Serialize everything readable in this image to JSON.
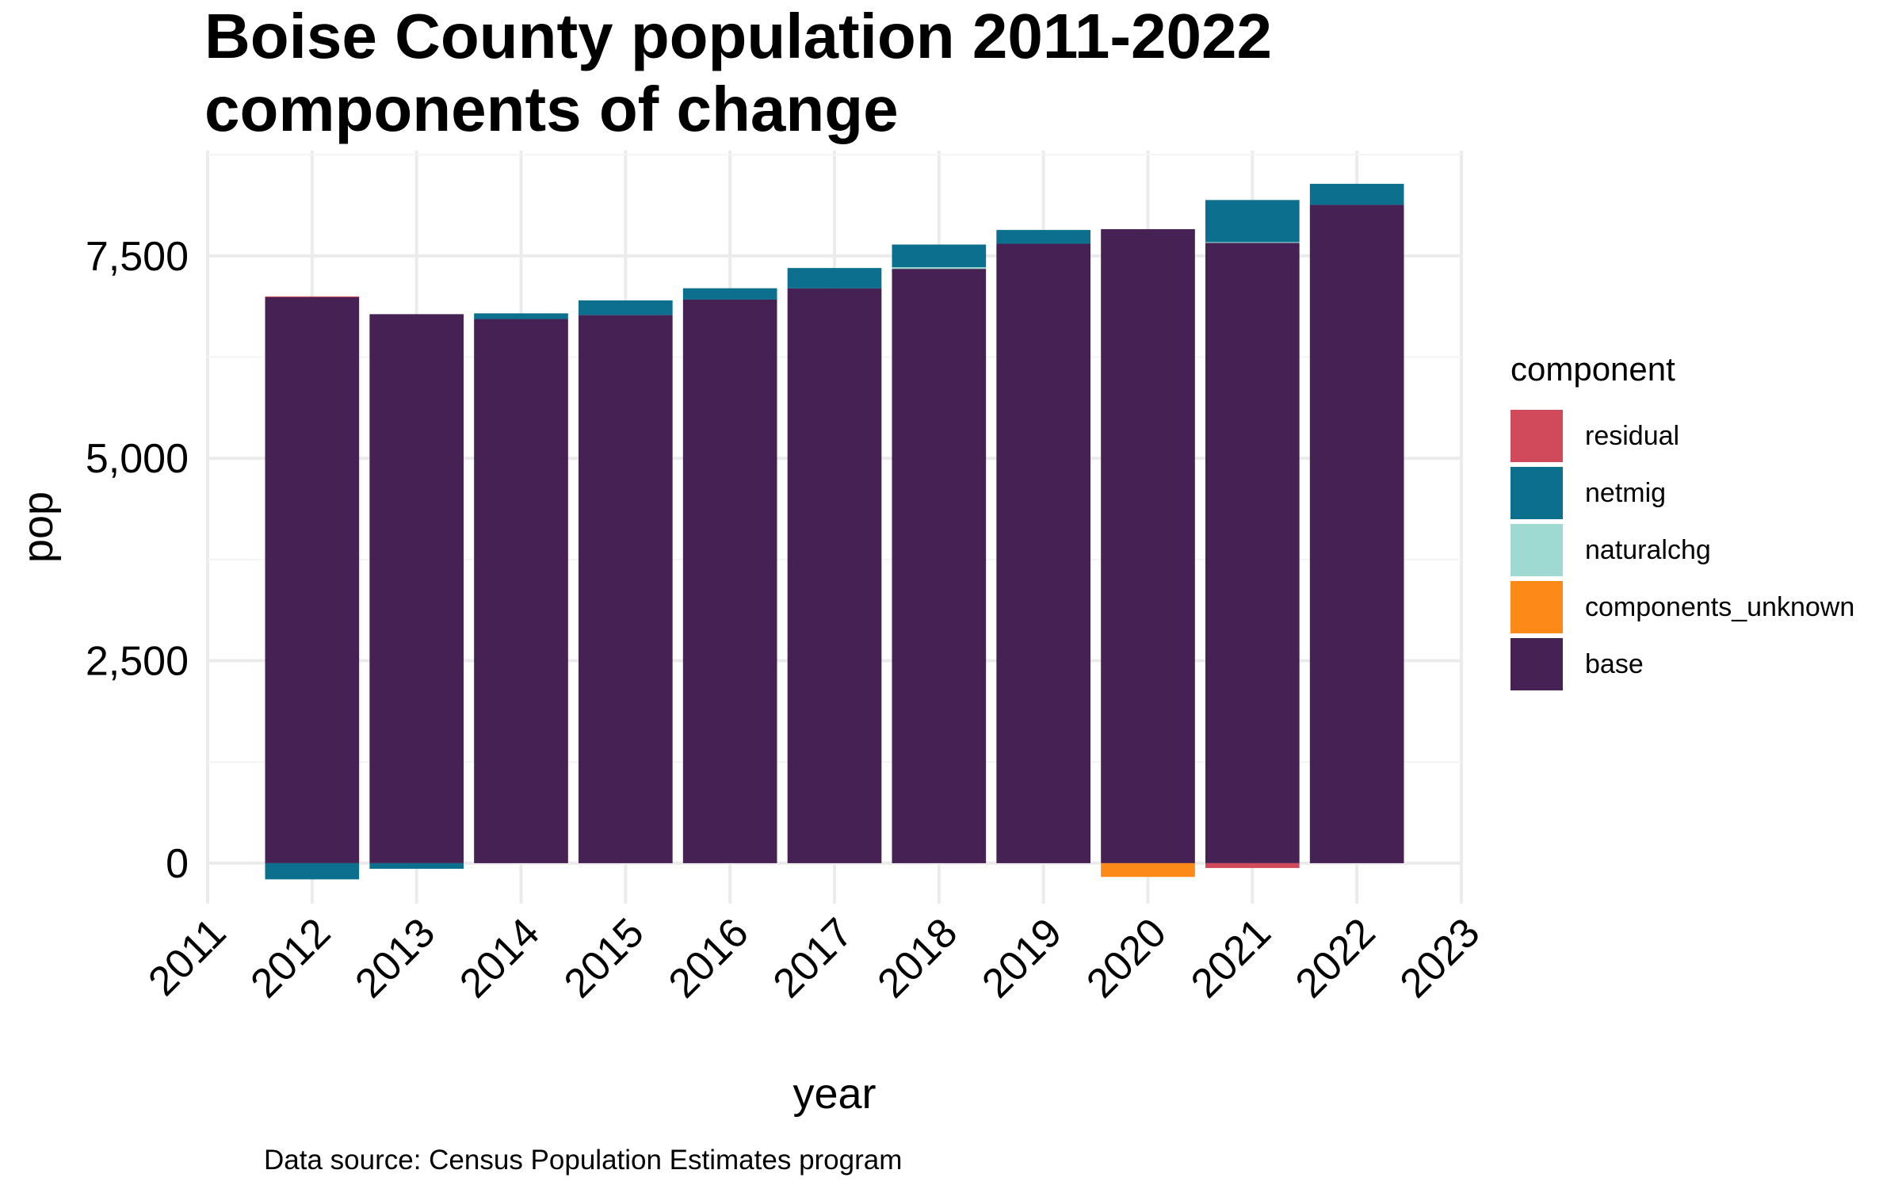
{
  "chart_data": {
    "type": "bar",
    "stacked": true,
    "title": "Boise County population 2011-2022",
    "subtitle": "components of change",
    "xlabel": "year",
    "ylabel": "pop",
    "caption": "Data source: Census Population Estimates program",
    "x_ticks": [
      "2011",
      "2012",
      "2013",
      "2014",
      "2015",
      "2016",
      "2017",
      "2018",
      "2019",
      "2020",
      "2021",
      "2022",
      "2023"
    ],
    "y_ticks": [
      {
        "value": 0,
        "label": "0"
      },
      {
        "value": 2500,
        "label": "2,500"
      },
      {
        "value": 5000,
        "label": "5,000"
      },
      {
        "value": 7500,
        "label": "7,500"
      }
    ],
    "xlim": [
      2011,
      2023
    ],
    "ylim": [
      -500,
      8800
    ],
    "grid": true,
    "legend_title": "component",
    "legend_position": "right",
    "categories": [
      2012,
      2013,
      2014,
      2015,
      2016,
      2017,
      2018,
      2019,
      2020,
      2021,
      2022
    ],
    "series": [
      {
        "name": "residual",
        "color": "#d14a5c",
        "values": [
          10,
          0,
          0,
          0,
          0,
          0,
          0,
          0,
          0,
          -60,
          0
        ]
      },
      {
        "name": "netmig",
        "color": "#0c6f8e",
        "values": [
          -200,
          -70,
          70,
          180,
          140,
          250,
          280,
          170,
          0,
          520,
          260
        ]
      },
      {
        "name": "naturalchg",
        "color": "#9ed9d2",
        "values": [
          0,
          0,
          0,
          0,
          0,
          0,
          20,
          0,
          0,
          10,
          0
        ]
      },
      {
        "name": "components_unknown",
        "color": "#fd8a18",
        "values": [
          0,
          0,
          0,
          0,
          0,
          0,
          0,
          0,
          -170,
          0,
          0
        ]
      },
      {
        "name": "base",
        "color": "#452253",
        "values": [
          6990,
          6780,
          6720,
          6770,
          6960,
          7100,
          7340,
          7650,
          7830,
          7660,
          8130
        ]
      }
    ]
  }
}
